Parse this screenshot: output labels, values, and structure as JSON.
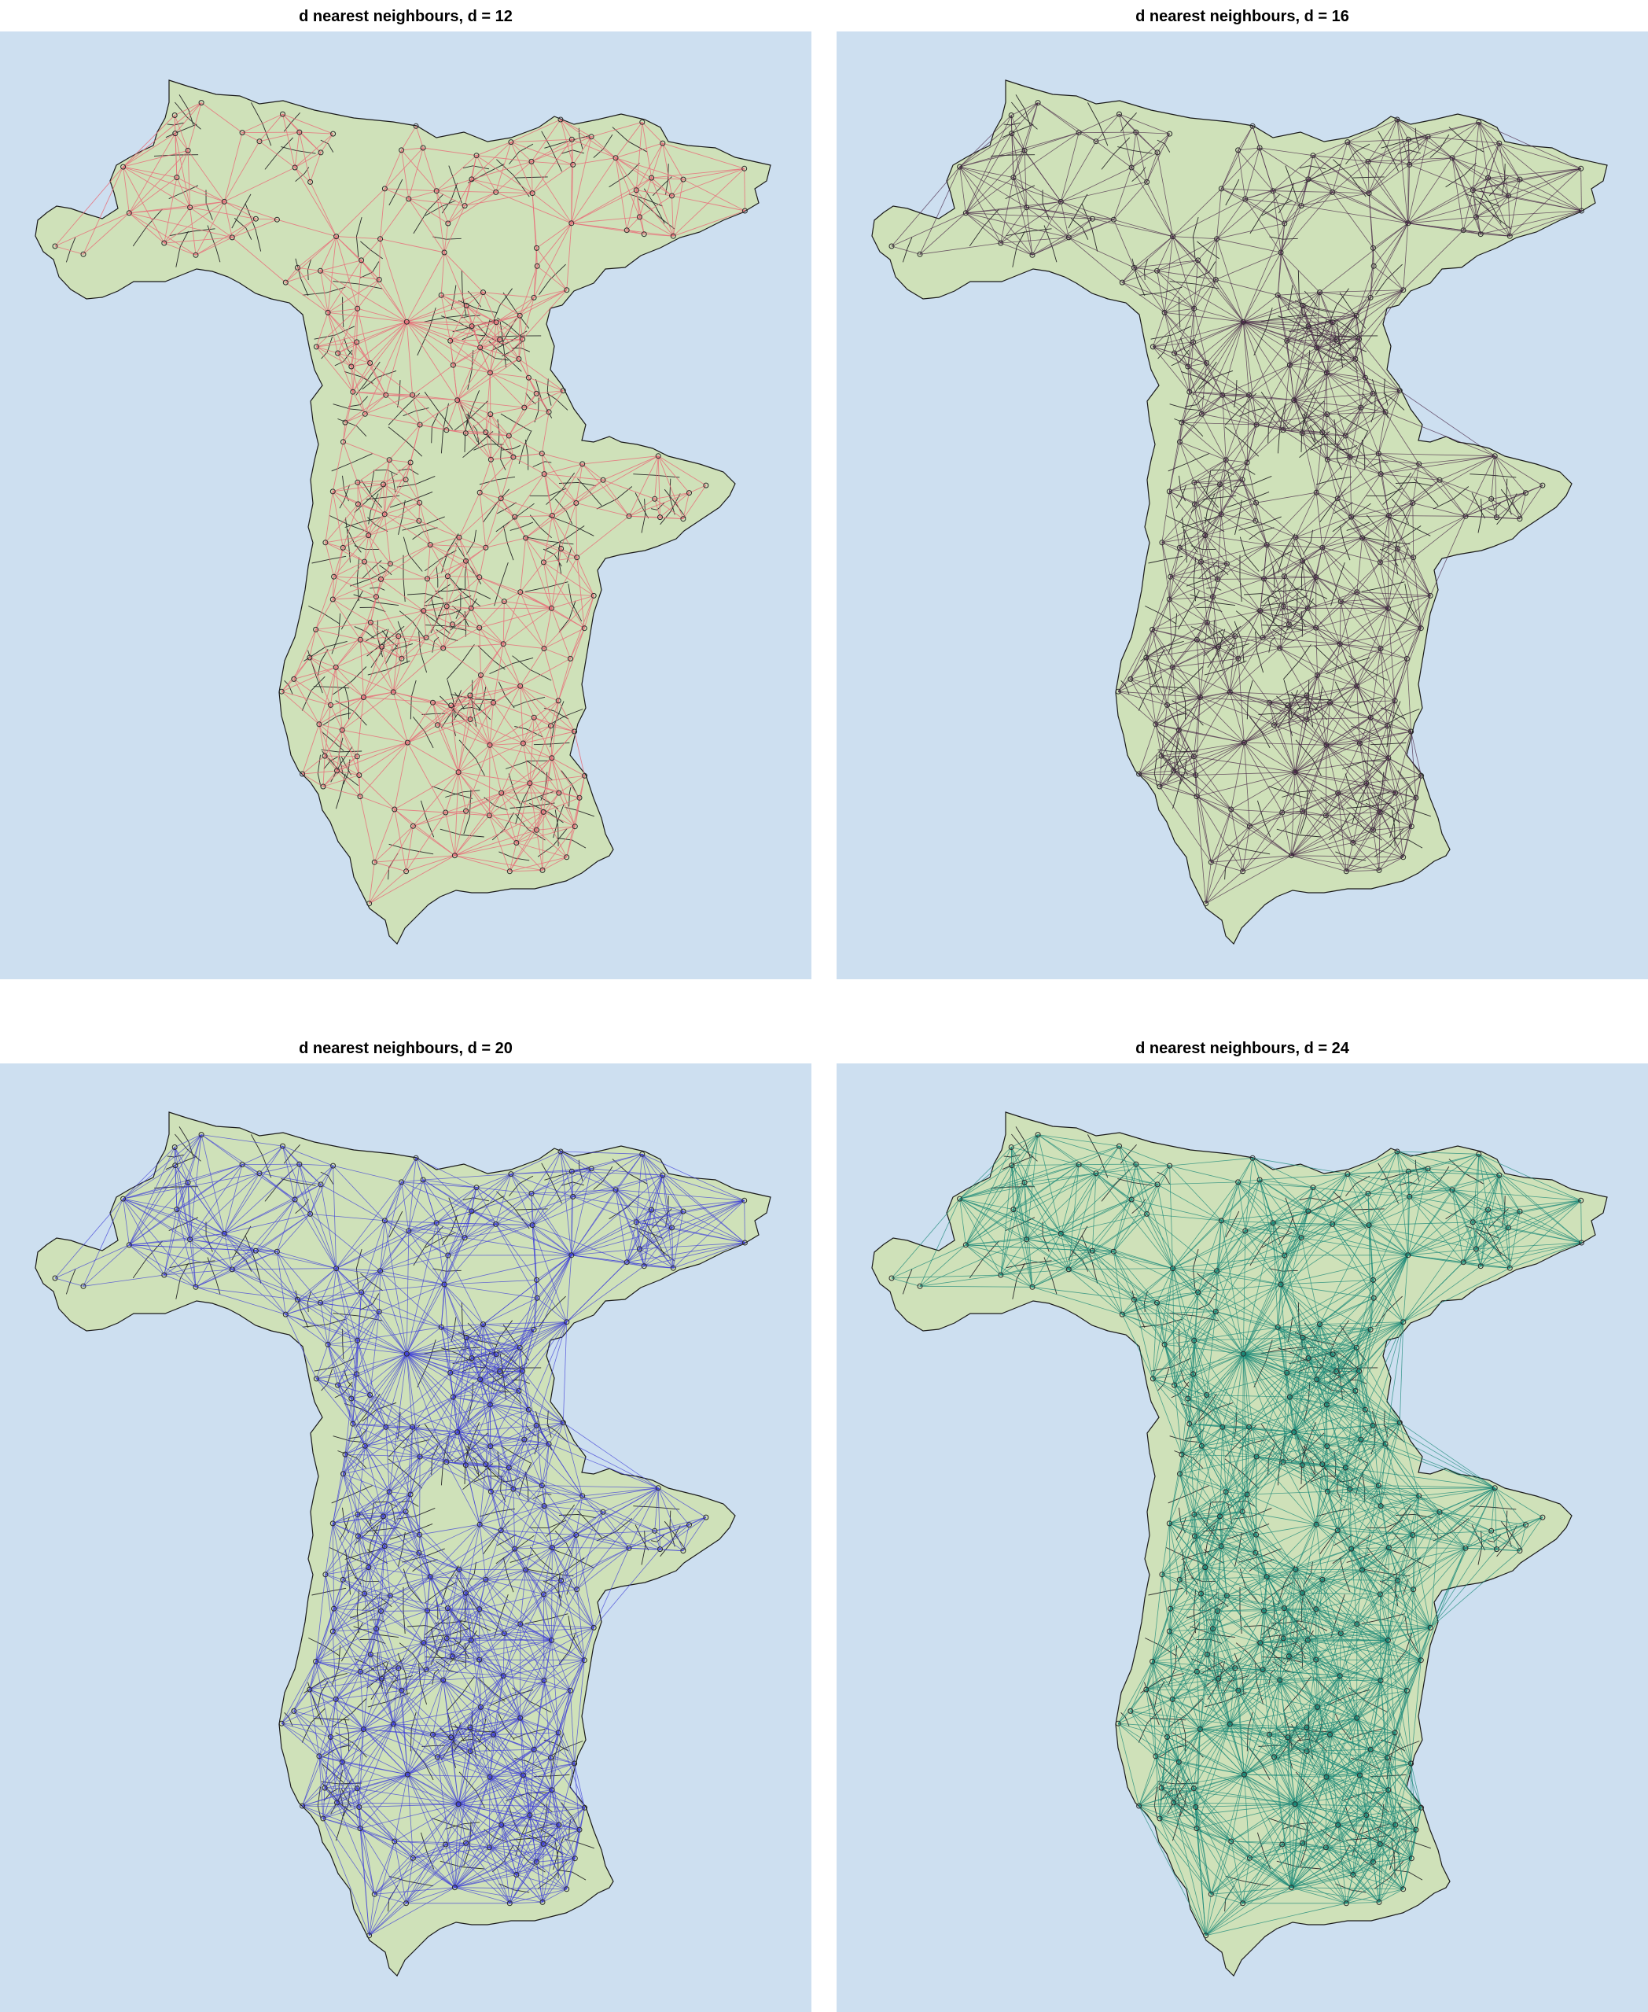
{
  "figure": {
    "background": "#cddff0",
    "land_fill": "#cfe1b9",
    "border_color": "#1a1a1a"
  },
  "panels": [
    {
      "title": "d nearest neighbours, d = 12",
      "d": 12,
      "edge_color": "#e8707a",
      "edge_density": 1.0,
      "node_color": "#2a2a2a"
    },
    {
      "title": "d nearest neighbours, d = 16",
      "d": 16,
      "edge_color": "#4a2848",
      "edge_density": 1.6,
      "node_color": "#2a2a2a"
    },
    {
      "title": "d nearest neighbours, d = 20",
      "d": 20,
      "edge_color": "#4040d8",
      "edge_density": 2.2,
      "node_color": "#2a2a2a"
    },
    {
      "title": "d nearest neighbours, d = 24",
      "d": 24,
      "edge_color": "#1a8878",
      "edge_density": 2.8,
      "node_color": "#2a2a2a"
    }
  ]
}
